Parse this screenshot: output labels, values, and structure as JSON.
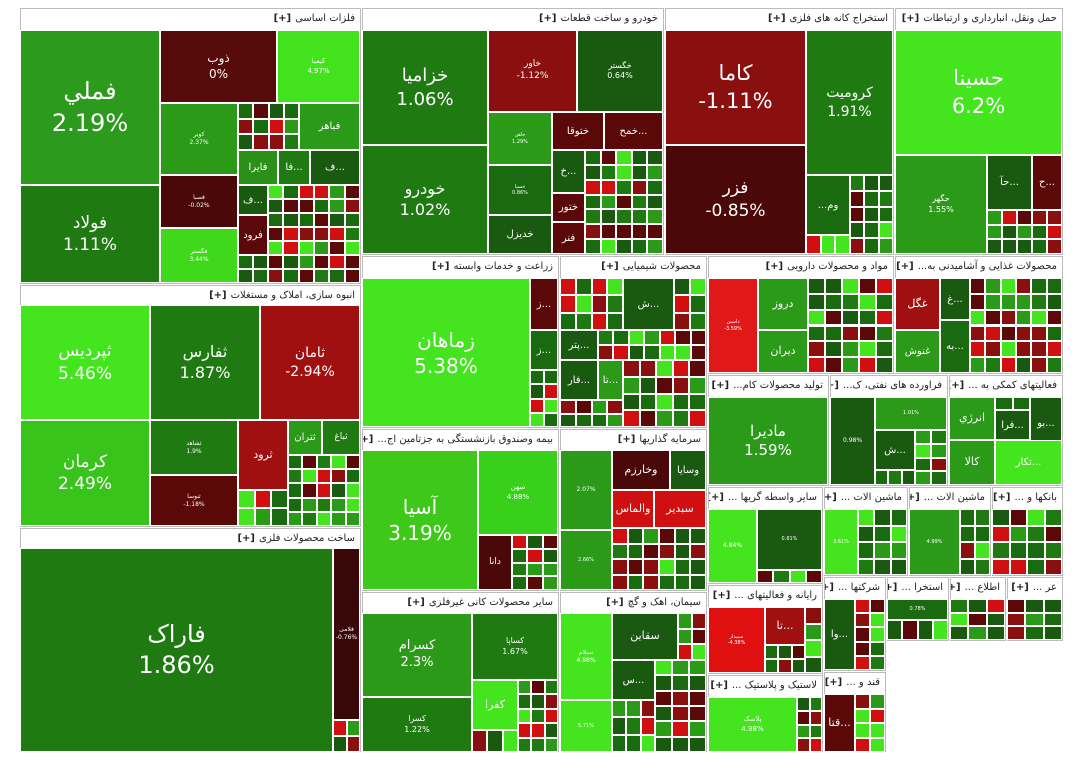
{
  "toggle": "[+]",
  "groups": [
    {
      "title": "فلزات اساسی",
      "tiles": [
        {
          "label": "فملي",
          "value": 2.19,
          "value_label": "2.19%",
          "color": "#2c9a1c"
        },
        {
          "label": "فولاد",
          "value": 1.11,
          "value_label": "1.11%",
          "color": "#1f7a12"
        },
        {
          "label": "ذوب",
          "value": 0,
          "value_label": "0%",
          "color": "#560a0a"
        },
        {
          "label": "کیمیا",
          "value": 4.97,
          "value_label": "4.97%",
          "color": "#42e21c"
        },
        {
          "label": "کویر",
          "value": 2.37,
          "value_label": "2.37%",
          "color": "#2a9a18"
        },
        {
          "label": "فباهر",
          "color": "#2a9a18"
        },
        {
          "label": "فصبا",
          "value": -0.02,
          "value_label": "-0.02%",
          "color": "#4a0808"
        },
        {
          "label": "فگستر",
          "value": 3.44,
          "value_label": "3.44%",
          "color": "#3fd81a"
        },
        {
          "label": "فایرا",
          "color": "#2a9018"
        },
        {
          "label": "فا...",
          "color": "#1f7a12"
        },
        {
          "label": "ف...",
          "color": "#1a5a10"
        },
        {
          "label": "ف...",
          "color": "#1a5a10"
        },
        {
          "label": "فرود",
          "color": "#5a0808"
        }
      ]
    },
    {
      "title": "انبوه سازی، املاک و مستغلات",
      "tiles": [
        {
          "label": "ثپردیس",
          "value": 5.46,
          "value_label": "5.46%",
          "color": "#44e41e"
        },
        {
          "label": "کرمان",
          "value": 2.49,
          "value_label": "2.49%",
          "color": "#38c41a"
        },
        {
          "label": "ثفارس",
          "value": 1.87,
          "value_label": "1.87%",
          "color": "#1f7a12"
        },
        {
          "label": "ثامان",
          "value": -2.94,
          "value_label": "-2.94%",
          "color": "#a01010"
        },
        {
          "label": "ثشاهد",
          "value": 1.9,
          "value_label": "1.9%",
          "color": "#1f7a12"
        },
        {
          "label": "ثنوسا",
          "value": -1.18,
          "value_label": "-1.18%",
          "color": "#5a0808"
        },
        {
          "label": "ثرود",
          "color": "#a01010"
        },
        {
          "label": "ثتران",
          "color": "#2a9a18"
        },
        {
          "label": "ثباغ",
          "color": "#1f7a12"
        }
      ]
    },
    {
      "title": "ساخت محصولات فلزی",
      "tiles": [
        {
          "label": "فاراک",
          "value": 1.86,
          "value_label": "1.86%",
          "color": "#1f7a12"
        },
        {
          "label": "فلامی",
          "value": -0.76,
          "value_label": "-0.76%",
          "color": "#3a0808"
        }
      ]
    },
    {
      "title": "خودرو و ساخت قطعات",
      "tiles": [
        {
          "label": "خزامیا",
          "value": 1.06,
          "value_label": "1.06%",
          "color": "#1f7a12"
        },
        {
          "label": "خودرو",
          "value": 1.02,
          "value_label": "1.02%",
          "color": "#1f7a12"
        },
        {
          "label": "خاور",
          "value": -1.12,
          "value_label": "-1.12%",
          "color": "#8a1010"
        },
        {
          "label": "خگستر",
          "value": 0.64,
          "value_label": "0.64%",
          "color": "#1a5a10"
        },
        {
          "label": "خاهن",
          "value": 1.29,
          "value_label": "1.29%",
          "color": "#2a9a18"
        },
        {
          "label": "خسپا",
          "value": 0.86,
          "value_label": "0.86%",
          "color": "#1a6a10"
        },
        {
          "label": "خديزل",
          "color": "#1a5a10"
        },
        {
          "label": "ختوقا",
          "color": "#5a0808"
        },
        {
          "label": "خمح...",
          "color": "#5a0808"
        },
        {
          "label": "خ...",
          "color": "#1a5a10"
        },
        {
          "label": "ختور",
          "color": "#5a0808"
        },
        {
          "label": "فنر",
          "color": "#5a0808"
        }
      ]
    },
    {
      "title": "استخراج کانه های فلزی",
      "tiles": [
        {
          "label": "کاما",
          "value": -1.11,
          "value_label": "-1.11%",
          "color": "#8a1010"
        },
        {
          "label": "فزر",
          "value": -0.85,
          "value_label": "-0.85%",
          "color": "#4a0808"
        },
        {
          "label": "کرومیت",
          "value": 1.91,
          "value_label": "1.91%",
          "color": "#1f7a12"
        },
        {
          "label": "...وم",
          "color": "#1a6a10"
        }
      ]
    },
    {
      "title": "حمل ونقل، انبارداری و ارتباطات",
      "tiles": [
        {
          "label": "حسینا",
          "value": 6.2,
          "value_label": "6.2%",
          "color": "#44e41e"
        },
        {
          "label": "حگهر",
          "value": 1.55,
          "value_label": "1.55%",
          "color": "#2a9a18"
        },
        {
          "label": "حآ...",
          "color": "#1a5a10"
        },
        {
          "label": "ح...",
          "color": "#5a0808"
        }
      ]
    },
    {
      "title": "زراعت و خدمات وابسته",
      "tiles": [
        {
          "label": "زماهان",
          "value": 5.38,
          "value_label": "5.38%",
          "color": "#44e41e"
        },
        {
          "label": "ز...",
          "color": "#5a0808"
        },
        {
          "label": "ز...",
          "color": "#1a6a10"
        }
      ]
    },
    {
      "title": "محصولات شیمیایی",
      "tiles": [
        {
          "label": "ش...",
          "color": "#1a5a10"
        },
        {
          "label": "پتر...",
          "color": "#1a5a10"
        },
        {
          "label": "فار...",
          "color": "#1a5a10"
        },
        {
          "label": "تا...",
          "color": "#2a9a18"
        }
      ]
    },
    {
      "title": "مواد و محصولات دارویی",
      "tiles": [
        {
          "label": "داسین",
          "value": -3.59,
          "value_label": "-3.59%",
          "color": "#e01818"
        },
        {
          "label": "دروز",
          "color": "#2a9a18"
        },
        {
          "label": "دیران",
          "color": "#2a9a18"
        }
      ]
    },
    {
      "title": "محصولات غذایی و آشامیدنی به...",
      "tiles": [
        {
          "label": "غگل",
          "color": "#a01010"
        },
        {
          "label": "غ...",
          "color": "#1a5a10"
        },
        {
          "label": "غنوش",
          "color": "#2a9a18"
        },
        {
          "label": "به...",
          "color": "#1a6a10"
        }
      ]
    },
    {
      "title": "بیمه وصندوق بازنشستگی به جزتامین اج...",
      "tiles": [
        {
          "label": "آسیا",
          "value": 3.19,
          "value_label": "3.19%",
          "color": "#3ec81a"
        },
        {
          "label": "میهن",
          "value": 4.88,
          "value_label": "4.88%",
          "color": "#38d01a"
        },
        {
          "label": "دانا",
          "color": "#4a0808"
        }
      ]
    },
    {
      "title": "سرمایه گذاریها",
      "tiles": [
        {
          "value": 2.07,
          "value_label": "2.07%",
          "color": "#2a9a18"
        },
        {
          "label": "وسایا",
          "color": "#1a5a10"
        },
        {
          "label": "وخارزم",
          "color": "#4a0808"
        },
        {
          "label": "سبدیر",
          "color": "#d01010"
        },
        {
          "label": "والماس",
          "color": "#d01010"
        },
        {
          "value": 2.66,
          "value_label": "2.66%",
          "color": "#2a9a18"
        }
      ]
    },
    {
      "title": "سایر محصولات کانی غیرفلزی",
      "tiles": [
        {
          "label": "کسرام",
          "value": 2.3,
          "value_label": "2.3%",
          "color": "#2a9a18"
        },
        {
          "label": "کسرا",
          "value": 1.22,
          "value_label": "1.22%",
          "color": "#1f7a12"
        },
        {
          "label": "کساپا",
          "value": 1.67,
          "value_label": "1.67%",
          "color": "#1f7a12"
        },
        {
          "label": "کفرا",
          "color": "#44e41e"
        }
      ]
    },
    {
      "title": "سیمان، اهک و گچ",
      "tiles": [
        {
          "label": "سیلام",
          "value": 4.98,
          "value_label": "4.98%",
          "color": "#44e41e"
        },
        {
          "label": "سقاين",
          "color": "#1a5a10"
        },
        {
          "label": "س...",
          "color": "#1a5a10"
        },
        {
          "value": 5.71,
          "value_label": "5.71%",
          "color": "#44e41e"
        }
      ]
    },
    {
      "title": "تولید محصولات کام...",
      "tiles": [
        {
          "label": "مادیرا",
          "value": 1.59,
          "value_label": "1.59%",
          "color": "#2a9a18"
        }
      ]
    },
    {
      "title": "فراورده های نفتی، ک...",
      "tiles": [
        {
          "value": 0.98,
          "value_label": "0.98%",
          "color": "#1a5a10"
        },
        {
          "value": 1.01,
          "value_label": "1.01%",
          "color": "#2a9a18"
        },
        {
          "label": "ش...",
          "color": "#1a5a10"
        }
      ]
    },
    {
      "title": "فعالیتهای کمکی به ...",
      "tiles": [
        {
          "label": "انرژي",
          "color": "#2a9a18"
        },
        {
          "label": "فرا...",
          "color": "#1a5a10"
        },
        {
          "label": "بو...",
          "color": "#1a5a10"
        },
        {
          "label": "کالا",
          "color": "#2a9a18"
        },
        {
          "label": "تکار...",
          "color": "#44e41e"
        }
      ]
    },
    {
      "title": "سایر واسطه گریها ...",
      "tiles": [
        {
          "value": 4.84,
          "value_label": "4.84%",
          "color": "#44e41e"
        },
        {
          "value": 0.81,
          "value_label": "0.81%",
          "color": "#1a5a10"
        }
      ]
    },
    {
      "title": "ماشین الات ...",
      "tiles": [
        {
          "value": 3.61,
          "value_label": "3.61%",
          "color": "#44e41e"
        }
      ]
    },
    {
      "title": "ماشین الات ...",
      "tiles": [
        {
          "value": 4.99,
          "value_label": "4.99%",
          "color": "#2a9a18"
        }
      ]
    },
    {
      "title": "بانکها و ...",
      "tiles": []
    },
    {
      "title": "رایانه و فعالیتهای ...",
      "tiles": [
        {
          "label": "سپیدار",
          "value": -4.38,
          "value_label": "-4.38%",
          "color": "#e01010"
        },
        {
          "label": "تا...",
          "color": "#a01010"
        }
      ]
    },
    {
      "title": "شرکتها ...",
      "tiles": [
        {
          "label": "وا...",
          "color": "#1a5a10"
        }
      ]
    },
    {
      "title": "استخرا ...",
      "tiles": [
        {
          "value": 0.78,
          "value_label": "0.78%",
          "color": "#1a6a10"
        }
      ]
    },
    {
      "title": "اطلاع ...",
      "tiles": []
    },
    {
      "title": "عر ...",
      "tiles": []
    },
    {
      "title": "قند و ...",
      "tiles": [
        {
          "label": "قتا...",
          "color": "#5a0808"
        }
      ]
    },
    {
      "title": "لاستیک و پلاستیک ...",
      "tiles": [
        {
          "label": "پلاسک",
          "value": 4.98,
          "value_label": "4.98%",
          "color": "#44e41e"
        }
      ]
    }
  ]
}
